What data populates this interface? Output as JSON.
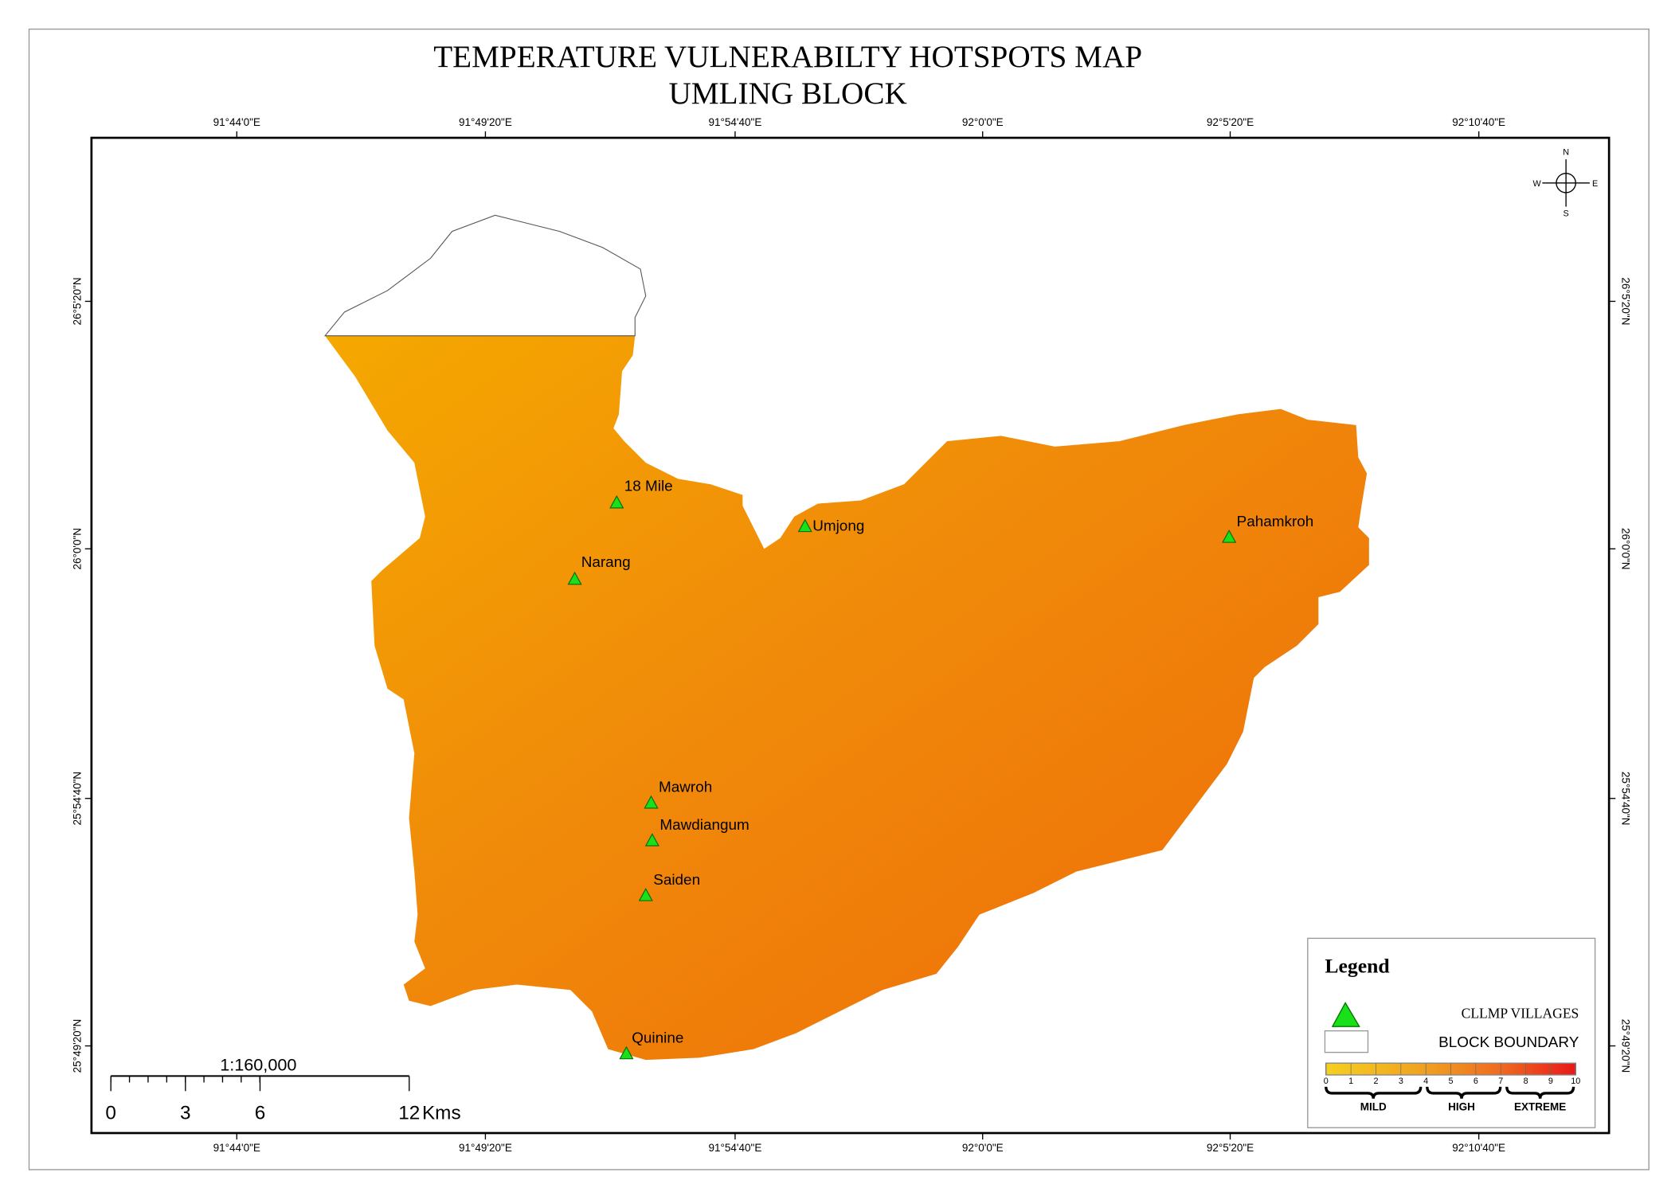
{
  "title": [
    "TEMPERATURE VULNERABILTY HOTSPOTS MAP",
    "UMLING BLOCK"
  ],
  "lon_ticks": [
    "91°44'0\"E",
    "91°49'20\"E",
    "91°54'40\"E",
    "92°0'0\"E",
    "92°5'20\"E",
    "92°10'40\"E"
  ],
  "lat_ticks": [
    "26°5'20\"N",
    "26°0'0\"N",
    "25°54'40\"N",
    "25°49'20\"N"
  ],
  "compass": {
    "n": "N",
    "e": "E",
    "s": "S",
    "w": "W"
  },
  "villages": [
    "18 Mile",
    "Umjong",
    "Pahamkroh",
    "Narang",
    "Mawroh",
    "Mawdiangum",
    "Saiden",
    "Quinine"
  ],
  "scale_bar": {
    "ratio": "1:160,000",
    "ticks": [
      0,
      3,
      6,
      12
    ],
    "unit": "Kms"
  },
  "legend": {
    "title": "Legend",
    "items": [
      "CLLMP VILLAGES",
      "BLOCK BOUNDARY"
    ],
    "gradient_ticks": [
      0,
      1,
      2,
      3,
      4,
      5,
      6,
      7,
      8,
      9,
      10
    ],
    "classes": [
      "MILD",
      "HIGH",
      "EXTREME"
    ]
  }
}
